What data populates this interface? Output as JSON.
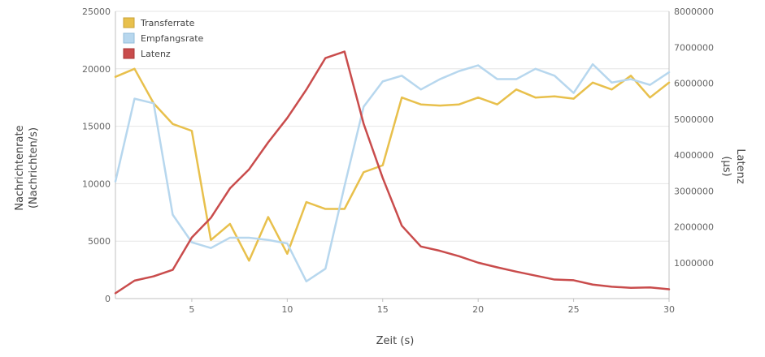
{
  "chart_data": {
    "type": "line",
    "title": "",
    "xlabel": "Zeit (s)",
    "ylabel_left": [
      "Nachrichtenrate",
      "(Nachrichten/s)"
    ],
    "ylabel_right": [
      "Latenz",
      "(µs)"
    ],
    "x": [
      1,
      2,
      3,
      4,
      5,
      6,
      7,
      8,
      9,
      10,
      11,
      12,
      13,
      14,
      15,
      16,
      17,
      18,
      19,
      20,
      21,
      22,
      23,
      24,
      25,
      26,
      27,
      28,
      29,
      30
    ],
    "xlim": [
      1,
      30
    ],
    "xticks": [
      5,
      10,
      15,
      20,
      25,
      30
    ],
    "ylim_left": [
      0,
      25000
    ],
    "yticks_left": [
      0,
      5000,
      10000,
      15000,
      20000,
      25000
    ],
    "ylim_right": [
      0,
      8000000
    ],
    "yticks_right": [
      1000000,
      2000000,
      3000000,
      4000000,
      5000000,
      6000000,
      7000000,
      8000000
    ],
    "grid": true,
    "legend_position": "top-left",
    "series": [
      {
        "name": "Transferrate",
        "axis": "left",
        "color": "#e8c04c",
        "values": [
          19300,
          20000,
          17000,
          15200,
          14600,
          5100,
          6500,
          3300,
          7100,
          3900,
          8400,
          7800,
          7800,
          11000,
          11600,
          17500,
          16900,
          16800,
          16900,
          17500,
          16900,
          18200,
          17500,
          17600,
          17400,
          18800,
          18200,
          19400,
          17500,
          18800
        ]
      },
      {
        "name": "Empfangsrate",
        "axis": "left",
        "color": "#b7d7ee",
        "values": [
          10200,
          17400,
          17000,
          7300,
          4900,
          4400,
          5300,
          5300,
          5100,
          4800,
          1500,
          2600,
          9800,
          16700,
          18900,
          19400,
          18200,
          19100,
          19800,
          20300,
          19100,
          19100,
          20000,
          19400,
          17900,
          20400,
          18800,
          19100,
          18600,
          19700
        ]
      },
      {
        "name": "Latenz",
        "axis": "right",
        "color": "#c94c4c",
        "values": [
          150000,
          500000,
          620000,
          800000,
          1700000,
          2250000,
          3070000,
          3600000,
          4350000,
          5030000,
          5820000,
          6700000,
          6880000,
          4870000,
          3360000,
          2030000,
          1450000,
          1330000,
          1180000,
          1000000,
          870000,
          750000,
          640000,
          530000,
          510000,
          390000,
          330000,
          300000,
          310000,
          260000
        ]
      }
    ]
  }
}
